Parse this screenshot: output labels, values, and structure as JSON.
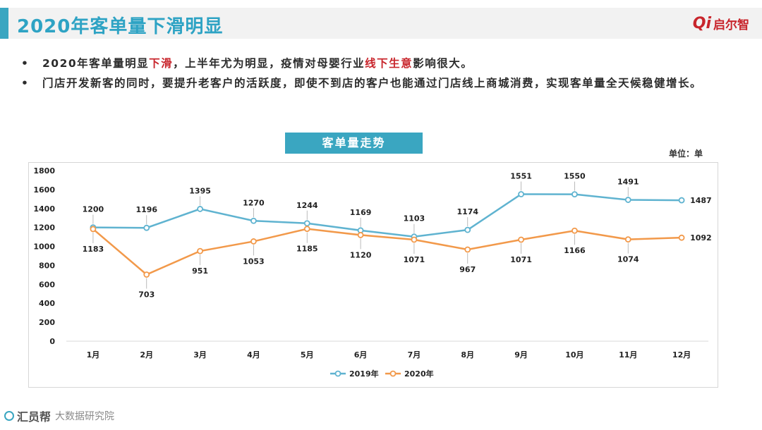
{
  "header": {
    "title": "2020年客单量下滑明显",
    "logo_mark": "Qi",
    "logo_text": "启尔智"
  },
  "bullets": [
    {
      "dot": "•",
      "parts": [
        {
          "text": "2020年客单量明显",
          "hl": false
        },
        {
          "text": "下滑",
          "hl": true
        },
        {
          "text": "，上半年尤为明显，疫情对母婴行业",
          "hl": false
        },
        {
          "text": "线下生意",
          "hl": true
        },
        {
          "text": "影响很大。",
          "hl": false
        }
      ]
    },
    {
      "dot": "•",
      "parts": [
        {
          "text": "门店开发新客的同时，要提升老客户的活跃度，即使不到店的客户也能通过门店线上商城消费，实现客单量全天候稳健增长。",
          "hl": false
        }
      ]
    }
  ],
  "chart": {
    "title_box": "客单量走势",
    "unit": "单位：单"
  },
  "watermark": "汇员帮",
  "footer": {
    "logo": "汇员帮",
    "text": "大数据研究院"
  },
  "chart_data": {
    "type": "line",
    "title": "客单量走势",
    "categories": [
      "1月",
      "2月",
      "3月",
      "4月",
      "5月",
      "6月",
      "7月",
      "8月",
      "9月",
      "10月",
      "11月",
      "12月"
    ],
    "series": [
      {
        "name": "2019年",
        "color": "#5fb3d0",
        "values": [
          1200,
          1196,
          1395,
          1270,
          1244,
          1169,
          1103,
          1174,
          1551,
          1550,
          1491,
          1487
        ]
      },
      {
        "name": "2020年",
        "color": "#f2994a",
        "values": [
          1183,
          703,
          951,
          1053,
          1185,
          1120,
          1071,
          967,
          1071,
          1166,
          1074,
          1092
        ]
      }
    ],
    "ylim": [
      0,
      1800
    ],
    "yticks": [
      0,
      200,
      400,
      600,
      800,
      1000,
      1200,
      1400,
      1600,
      1800
    ],
    "legend_position": "bottom",
    "grid": false
  }
}
